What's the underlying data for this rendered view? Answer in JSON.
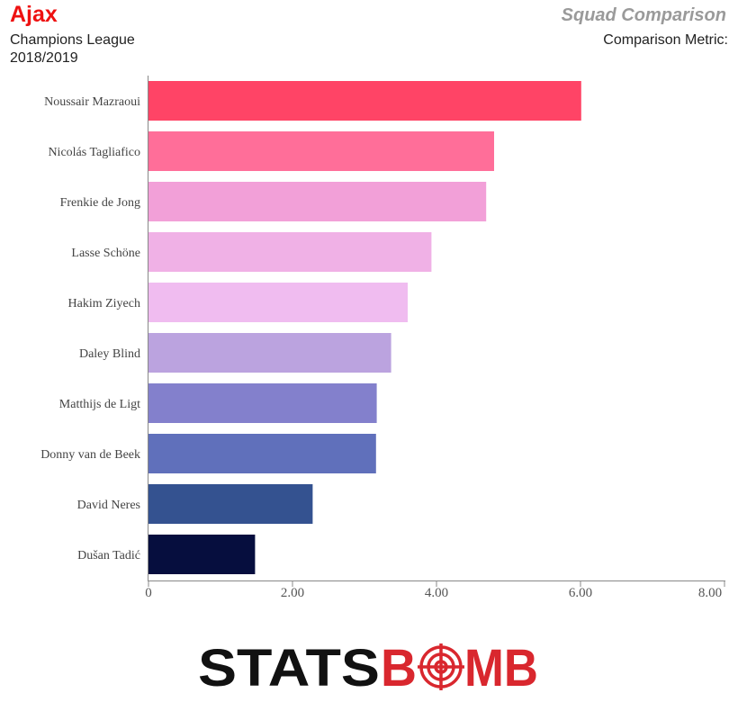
{
  "header": {
    "team": "Ajax",
    "competition": "Champions League",
    "season": "2018/2019",
    "report_title": "Squad Comparison",
    "metric_label": "Comparison Metric:"
  },
  "colors": {
    "team": "#ee1111"
  },
  "logo": {
    "part1": "STATS",
    "part2": "B",
    "part3": "MB",
    "dark_color": "#111111",
    "accent_color": "#d9272e"
  },
  "chart_data": {
    "type": "bar",
    "orientation": "horizontal",
    "categories": [
      "Noussair Mazraoui",
      "Nicolás Tagliafico",
      "Frenkie de Jong",
      "Lasse Schöne",
      "Hakim Ziyech",
      "Daley Blind",
      "Matthijs de Ligt",
      "Donny van de Beek",
      "David Neres",
      "Dušan Tadić"
    ],
    "values": [
      6.01,
      4.8,
      4.69,
      3.93,
      3.6,
      3.37,
      3.17,
      3.16,
      2.28,
      1.48
    ],
    "colors": [
      "#ff4466",
      "#ff6e99",
      "#f2a0d8",
      "#f0b1e6",
      "#f0bcf0",
      "#bba3df",
      "#8380cc",
      "#6070bb",
      "#345290",
      "#060e3e"
    ],
    "xlim": [
      0,
      8
    ],
    "xticks": [
      0,
      2,
      4,
      6,
      8
    ],
    "xtick_labels": [
      "0",
      "2.00",
      "4.00",
      "6.00",
      "8.00"
    ],
    "grid": false,
    "xlabel": "",
    "ylabel": ""
  }
}
